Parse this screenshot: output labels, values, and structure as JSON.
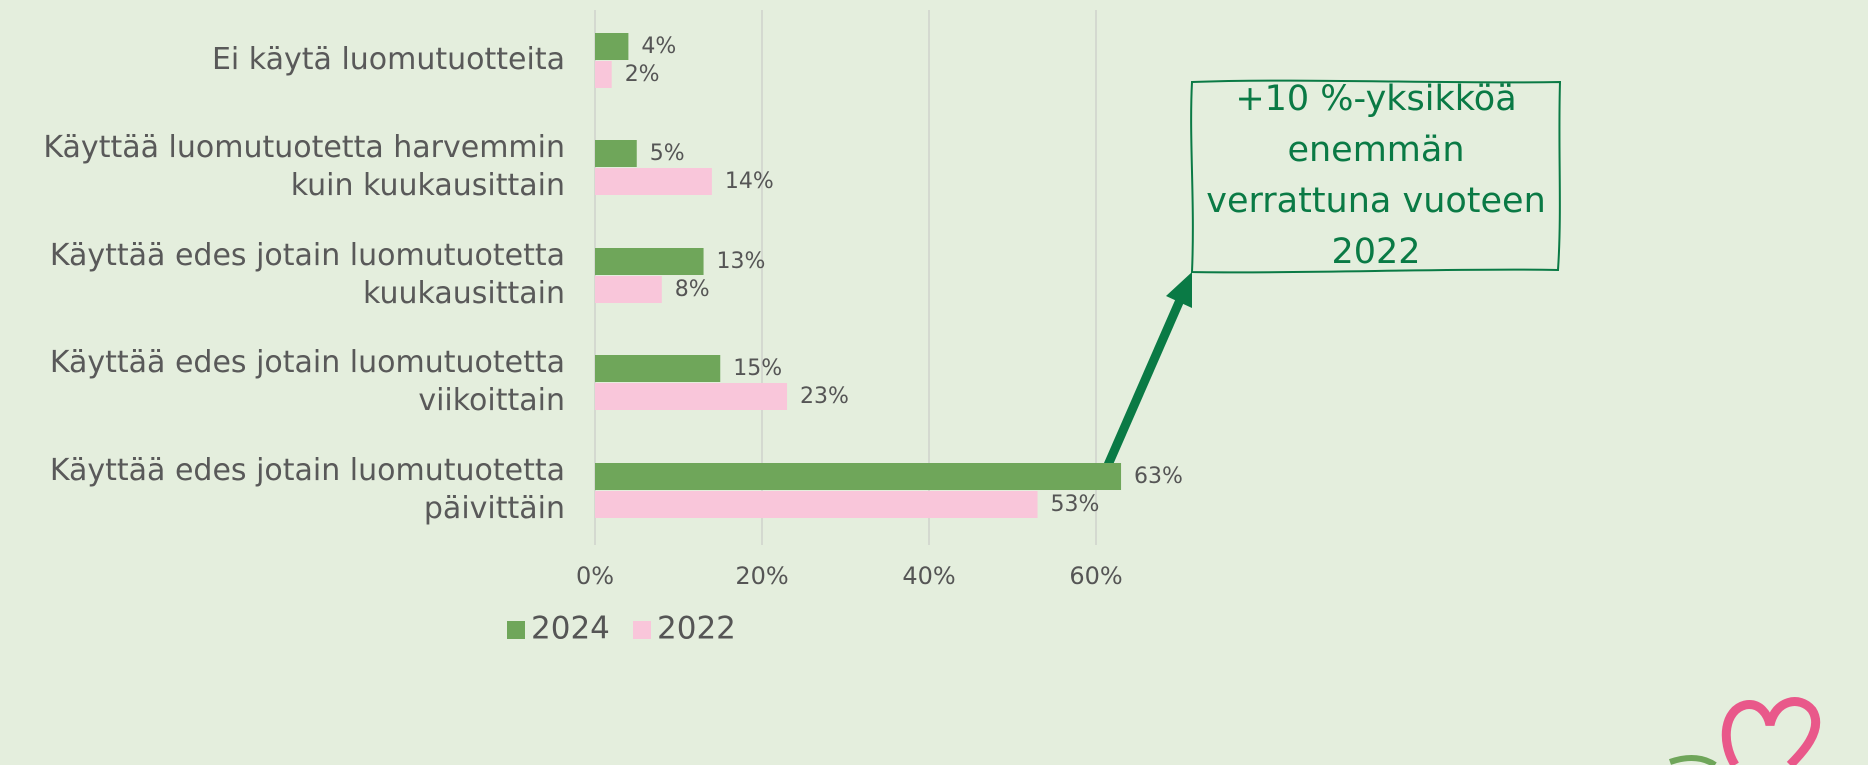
{
  "chart_data": {
    "type": "bar",
    "orientation": "horizontal",
    "categories": [
      "Ei käytä luomutuotteita",
      "Käyttää luomutuotetta harvemmin kuin kuukausittain",
      "Käyttää edes jotain luomutuotetta kuukausittain",
      "Käyttää edes jotain luomutuotetta viikoittain",
      "Käyttää edes jotain luomutuotetta päivittäin"
    ],
    "series": [
      {
        "name": "2024",
        "color": "#6fa65a",
        "values": [
          4,
          5,
          13,
          15,
          63
        ],
        "value_labels": [
          "4%",
          "5%",
          "13%",
          "15%",
          "63%"
        ]
      },
      {
        "name": "2022",
        "color": "#f9c6da",
        "values": [
          2,
          14,
          8,
          23,
          53
        ],
        "value_labels": [
          "2%",
          "14%",
          "8%",
          "23%",
          "53%"
        ]
      }
    ],
    "xlim": [
      0,
      70
    ],
    "xticks": [
      {
        "value": 0,
        "label": "0%"
      },
      {
        "value": 20,
        "label": "20%"
      },
      {
        "value": 40,
        "label": "40%"
      },
      {
        "value": 60,
        "label": "60%"
      }
    ],
    "grid": true,
    "legend": "bottom",
    "annotation": "+10 %-yksikköä enemmän verrattuna vuoteen 2022"
  }
}
